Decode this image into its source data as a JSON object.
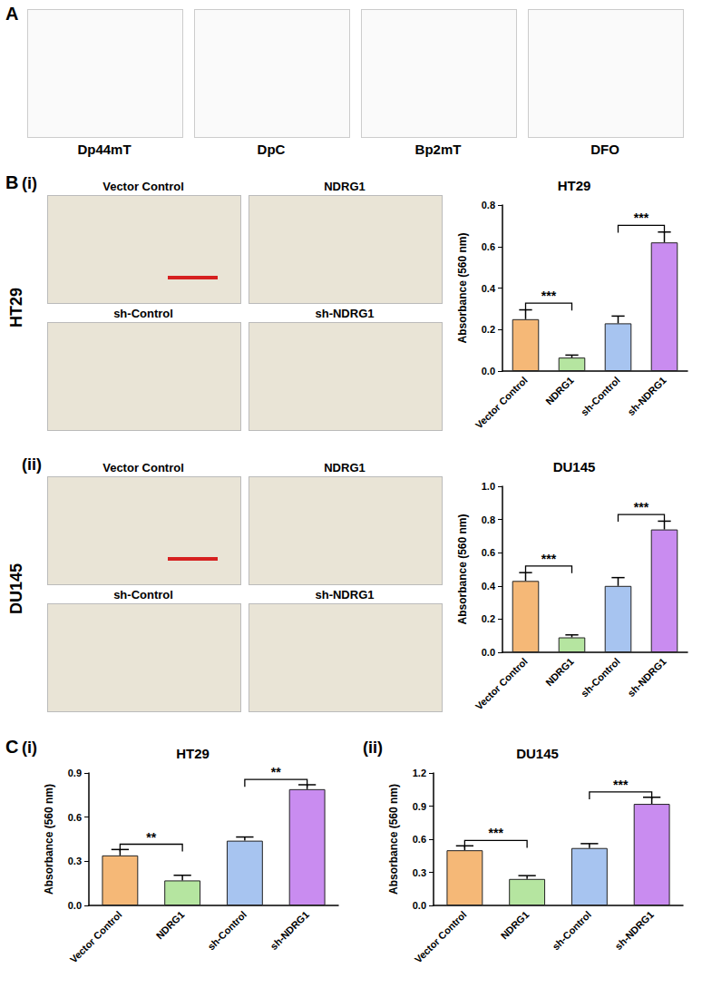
{
  "figure": {
    "panel_A": {
      "label": "A",
      "compounds": [
        "Dp44mT",
        "DpC",
        "Bp2mT",
        "DFO"
      ]
    },
    "panel_B": {
      "label": "B",
      "rows": [
        {
          "label": "(i)",
          "cell_line": "HT29",
          "images": [
            "Vector Control",
            "NDRG1",
            "sh-Control",
            "sh-NDRG1"
          ]
        },
        {
          "label": "(ii)",
          "cell_line": "DU145",
          "images": [
            "Vector Control",
            "NDRG1",
            "sh-Control",
            "sh-NDRG1"
          ]
        }
      ]
    },
    "panel_C": {
      "label": "C",
      "charts": [
        "(i)",
        "(ii)"
      ]
    }
  },
  "chart_data": [
    {
      "type": "bar",
      "title": "HT29",
      "y_label": "Absorbance (560 nm)",
      "categories": [
        "Vector Control",
        "NDRG1",
        "sh-Control",
        "sh-NDRG1"
      ],
      "values": [
        0.25,
        0.065,
        0.23,
        0.62
      ],
      "errors": [
        0.045,
        0.012,
        0.035,
        0.05
      ],
      "colors": [
        "#f5b877",
        "#b5e5a0",
        "#a7c4f0",
        "#c98cf0"
      ],
      "ylim": [
        0,
        0.8
      ],
      "yticks": [
        {
          "value": 0,
          "label": "0.0"
        },
        0.2,
        0.4,
        0.6,
        0.8
      ],
      "annotations": [
        {
          "between": [
            "Vector Control",
            "NDRG1"
          ],
          "text": "***"
        },
        {
          "between": [
            "sh-Control",
            "sh-NDRG1"
          ],
          "text": "***"
        }
      ]
    },
    {
      "type": "bar",
      "title": "DU145",
      "y_label": "Absorbance (560 nm)",
      "categories": [
        "Vector Control",
        "NDRG1",
        "sh-Control",
        "sh-NDRG1"
      ],
      "values": [
        0.43,
        0.09,
        0.4,
        0.74
      ],
      "errors": [
        0.05,
        0.015,
        0.05,
        0.05
      ],
      "colors": [
        "#f5b877",
        "#b5e5a0",
        "#a7c4f0",
        "#c98cf0"
      ],
      "ylim": [
        0,
        1.0
      ],
      "yticks": [
        {
          "value": 0,
          "label": "0.0"
        },
        0.2,
        0.4,
        0.6,
        0.8,
        {
          "value": 1.0,
          "label": "1.0"
        }
      ],
      "annotations": [
        {
          "between": [
            "Vector Control",
            "NDRG1"
          ],
          "text": "***"
        },
        {
          "between": [
            "sh-Control",
            "sh-NDRG1"
          ],
          "text": "***"
        }
      ]
    },
    {
      "type": "bar",
      "title": "HT29",
      "y_label": "Absorbance (560 nm)",
      "categories": [
        "Vector Control",
        "NDRG1",
        "sh-Control",
        "sh-NDRG1"
      ],
      "values": [
        0.34,
        0.17,
        0.44,
        0.79
      ],
      "errors": [
        0.04,
        0.035,
        0.025,
        0.03
      ],
      "colors": [
        "#f5b877",
        "#b5e5a0",
        "#a7c4f0",
        "#c98cf0"
      ],
      "ylim": [
        0,
        0.9
      ],
      "yticks": [
        {
          "value": 0,
          "label": "0.0"
        },
        0.3,
        0.6,
        0.9
      ],
      "annotations": [
        {
          "between": [
            "Vector Control",
            "NDRG1"
          ],
          "text": "**"
        },
        {
          "between": [
            "sh-Control",
            "sh-NDRG1"
          ],
          "text": "**"
        }
      ]
    },
    {
      "type": "bar",
      "title": "DU145",
      "y_label": "Absorbance (560 nm)",
      "categories": [
        "Vector Control",
        "NDRG1",
        "sh-Control",
        "sh-NDRG1"
      ],
      "values": [
        0.5,
        0.24,
        0.52,
        0.92
      ],
      "errors": [
        0.04,
        0.03,
        0.04,
        0.06
      ],
      "colors": [
        "#f5b877",
        "#b5e5a0",
        "#a7c4f0",
        "#c98cf0"
      ],
      "ylim": [
        0,
        1.2
      ],
      "yticks": [
        {
          "value": 0,
          "label": "0.0"
        },
        0.3,
        0.6,
        0.9,
        1.2
      ],
      "annotations": [
        {
          "between": [
            "Vector Control",
            "NDRG1"
          ],
          "text": "***"
        },
        {
          "between": [
            "sh-Control",
            "sh-NDRG1"
          ],
          "text": "***"
        }
      ]
    }
  ]
}
